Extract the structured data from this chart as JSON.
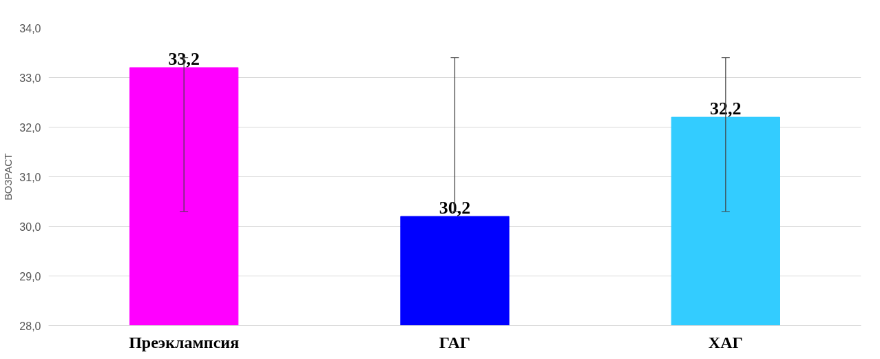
{
  "chart_data": {
    "type": "bar",
    "ylabel": "ВОЗРАСТ",
    "categories": [
      "Преэклампсия",
      "ГАГ",
      "ХАГ"
    ],
    "values": [
      33.2,
      30.2,
      32.2
    ],
    "colors": [
      "#ff00ff",
      "#0000ff",
      "#33ccff"
    ],
    "errors": [
      [
        30.3,
        33.4
      ],
      [
        30.3,
        33.4
      ],
      [
        30.3,
        33.4
      ]
    ],
    "value_labels": [
      "33,2",
      "30,2",
      "32,2"
    ],
    "ylim": [
      28,
      34
    ],
    "yticks": [
      {
        "value": 28,
        "label": "28,0"
      },
      {
        "value": 29,
        "label": "29,0"
      },
      {
        "value": 30,
        "label": "30,0"
      },
      {
        "value": 31,
        "label": "31,0"
      },
      {
        "value": 32,
        "label": "32,0"
      },
      {
        "value": 33,
        "label": "33,0"
      },
      {
        "value": 34,
        "label": "34,0"
      }
    ],
    "grid": "y"
  }
}
